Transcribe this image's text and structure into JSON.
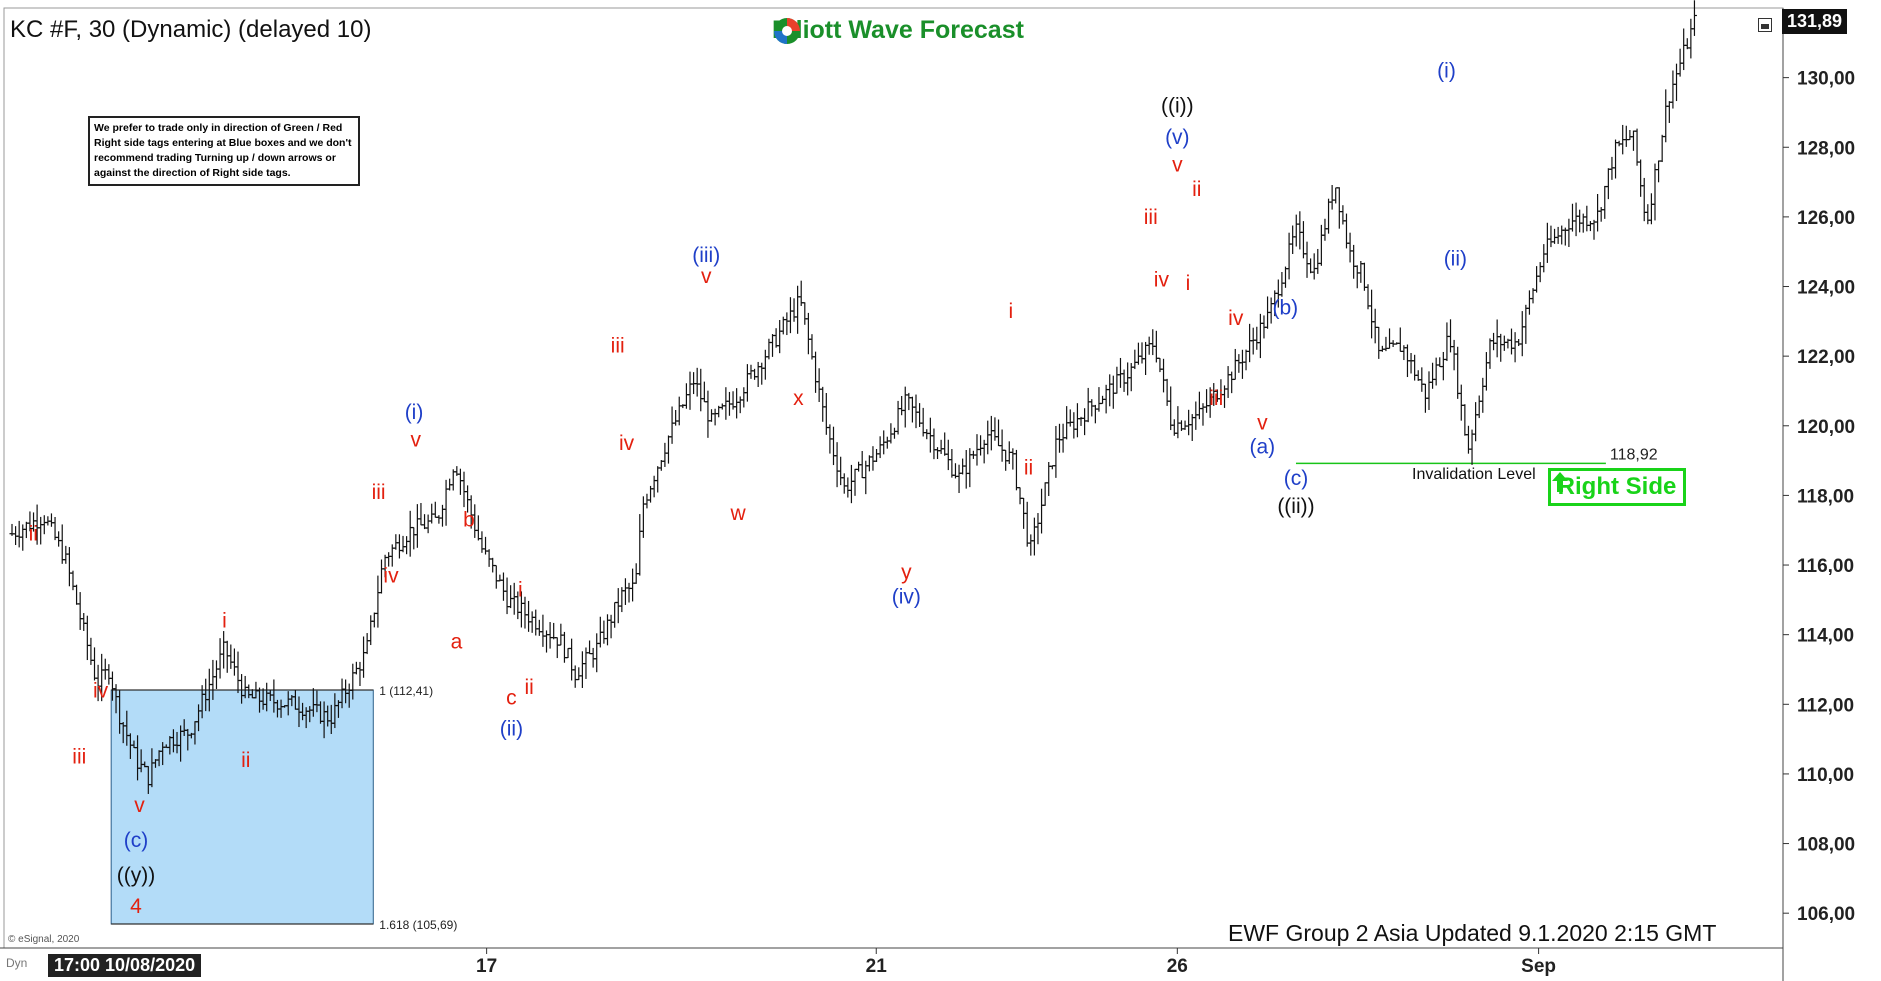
{
  "header": {
    "title": "KC #F, 30 (Dynamic) (delayed 10)",
    "logo_text": "Elliott Wave Forecast",
    "last_price": "131,89"
  },
  "note": {
    "text": "We prefer to trade only in direction of Green / Red Right side tags entering at Blue boxes and we don't recommend trading Turning up / down arrows or against the direction of Right side tags."
  },
  "footer": {
    "updated": "EWF Group 2 Asia Updated 9.1.2020 2:15 GMT",
    "esignal": "© eSignal, 2020",
    "dyn": "Dyn",
    "date_flag": "17:00 10/08/2020"
  },
  "box": {
    "label_top": "1 (112,41)",
    "label_bottom": "1.618 (105,69)",
    "top_value": 112.41,
    "bottom_value": 105.69,
    "color": "#b3dcf8"
  },
  "invalidation": {
    "label": "Invalidation Level",
    "value_text": "118,92",
    "value": 118.92
  },
  "right_side": {
    "label": "Right Side",
    "color": "#19d319"
  },
  "chart_data": {
    "type": "ohlc-bar",
    "y_axis": {
      "ticks": [
        "130,00",
        "128,00",
        "126,00",
        "124,00",
        "122,00",
        "120,00",
        "118,00",
        "116,00",
        "114,00",
        "112,00",
        "110,00",
        "108,00",
        "106,00"
      ],
      "tick_values": [
        130,
        128,
        126,
        124,
        122,
        120,
        118,
        116,
        114,
        112,
        110,
        108,
        106
      ],
      "range": [
        105,
        132
      ]
    },
    "x_axis": {
      "ticks": [
        "17",
        "21",
        "26",
        "Sep"
      ]
    },
    "price_path": [
      {
        "t": 0,
        "p": 116.9
      },
      {
        "t": 0.018,
        "p": 117.4
      },
      {
        "t": 0.03,
        "p": 116.2
      },
      {
        "t": 0.04,
        "p": 114.2
      },
      {
        "t": 0.048,
        "p": 112.6
      },
      {
        "t": 0.055,
        "p": 113.0
      },
      {
        "t": 0.06,
        "p": 111.8
      },
      {
        "t": 0.07,
        "p": 110.4
      },
      {
        "t": 0.077,
        "p": 109.9
      },
      {
        "t": 0.085,
        "p": 110.9
      },
      {
        "t": 0.1,
        "p": 111.2
      },
      {
        "t": 0.12,
        "p": 113.6
      },
      {
        "t": 0.132,
        "p": 112.2
      },
      {
        "t": 0.16,
        "p": 112.0
      },
      {
        "t": 0.18,
        "p": 111.6
      },
      {
        "t": 0.2,
        "p": 113.5
      },
      {
        "t": 0.21,
        "p": 116.2
      },
      {
        "t": 0.225,
        "p": 117.0
      },
      {
        "t": 0.24,
        "p": 117.3
      },
      {
        "t": 0.25,
        "p": 119.0
      },
      {
        "t": 0.265,
        "p": 116.5
      },
      {
        "t": 0.28,
        "p": 115.0
      },
      {
        "t": 0.295,
        "p": 114.4
      },
      {
        "t": 0.31,
        "p": 113.8
      },
      {
        "t": 0.318,
        "p": 112.9
      },
      {
        "t": 0.33,
        "p": 113.6
      },
      {
        "t": 0.345,
        "p": 115.2
      },
      {
        "t": 0.352,
        "p": 115.4
      },
      {
        "t": 0.356,
        "p": 117.7
      },
      {
        "t": 0.37,
        "p": 119.6
      },
      {
        "t": 0.385,
        "p": 121.3
      },
      {
        "t": 0.395,
        "p": 120.1
      },
      {
        "t": 0.41,
        "p": 120.9
      },
      {
        "t": 0.43,
        "p": 122.4
      },
      {
        "t": 0.445,
        "p": 123.6
      },
      {
        "t": 0.46,
        "p": 119.9
      },
      {
        "t": 0.47,
        "p": 118.2
      },
      {
        "t": 0.49,
        "p": 119.3
      },
      {
        "t": 0.505,
        "p": 120.7
      },
      {
        "t": 0.52,
        "p": 119.6
      },
      {
        "t": 0.535,
        "p": 118.5
      },
      {
        "t": 0.55,
        "p": 119.8
      },
      {
        "t": 0.565,
        "p": 119.0
      },
      {
        "t": 0.575,
        "p": 116.4
      },
      {
        "t": 0.59,
        "p": 119.6
      },
      {
        "t": 0.61,
        "p": 120.6
      },
      {
        "t": 0.63,
        "p": 121.5
      },
      {
        "t": 0.645,
        "p": 122.4
      },
      {
        "t": 0.655,
        "p": 120.0
      },
      {
        "t": 0.67,
        "p": 120.3
      },
      {
        "t": 0.69,
        "p": 121.6
      },
      {
        "t": 0.71,
        "p": 123.2
      },
      {
        "t": 0.725,
        "p": 125.6
      },
      {
        "t": 0.735,
        "p": 124.4
      },
      {
        "t": 0.747,
        "p": 127.0
      },
      {
        "t": 0.755,
        "p": 125.0
      },
      {
        "t": 0.763,
        "p": 124.3
      },
      {
        "t": 0.772,
        "p": 122.0
      },
      {
        "t": 0.785,
        "p": 122.3
      },
      {
        "t": 0.798,
        "p": 120.9
      },
      {
        "t": 0.812,
        "p": 122.6
      },
      {
        "t": 0.822,
        "p": 119.3
      },
      {
        "t": 0.835,
        "p": 122.4
      },
      {
        "t": 0.85,
        "p": 122.4
      },
      {
        "t": 0.865,
        "p": 125.0
      },
      {
        "t": 0.88,
        "p": 125.9
      },
      {
        "t": 0.895,
        "p": 126.0
      },
      {
        "t": 0.905,
        "p": 127.9
      },
      {
        "t": 0.915,
        "p": 128.4
      },
      {
        "t": 0.923,
        "p": 125.8
      },
      {
        "t": 0.935,
        "p": 129.4
      },
      {
        "t": 0.95,
        "p": 131.6
      }
    ]
  },
  "wave_labels": [
    {
      "text": "ii",
      "color": "red",
      "t": 0.012,
      "p": 116.7
    },
    {
      "text": "iv",
      "color": "red",
      "t": 0.05,
      "p": 112.2
    },
    {
      "text": "iii",
      "color": "red",
      "t": 0.038,
      "p": 110.3
    },
    {
      "text": "v",
      "color": "red",
      "t": 0.072,
      "p": 108.9
    },
    {
      "text": "(c)",
      "color": "blue",
      "t": 0.07,
      "p": 107.9
    },
    {
      "text": "((y))",
      "color": "black",
      "t": 0.07,
      "p": 106.9
    },
    {
      "text": "4",
      "color": "red",
      "t": 0.07,
      "p": 106.0
    },
    {
      "text": "i",
      "color": "red",
      "t": 0.12,
      "p": 114.2
    },
    {
      "text": "ii",
      "color": "red",
      "t": 0.132,
      "p": 110.2
    },
    {
      "text": "iii",
      "color": "red",
      "t": 0.207,
      "p": 117.9
    },
    {
      "text": "iv",
      "color": "red",
      "t": 0.214,
      "p": 115.5
    },
    {
      "text": "(i)",
      "color": "blue",
      "t": 0.227,
      "p": 120.2
    },
    {
      "text": "v",
      "color": "red",
      "t": 0.228,
      "p": 119.4
    },
    {
      "text": "b",
      "color": "red",
      "t": 0.258,
      "p": 117.1
    },
    {
      "text": "a",
      "color": "red",
      "t": 0.251,
      "p": 113.6
    },
    {
      "text": "c",
      "color": "red",
      "t": 0.282,
      "p": 112.0
    },
    {
      "text": "(ii)",
      "color": "blue",
      "t": 0.282,
      "p": 111.1
    },
    {
      "text": "i",
      "color": "red",
      "t": 0.287,
      "p": 115.1
    },
    {
      "text": "ii",
      "color": "red",
      "t": 0.292,
      "p": 112.3
    },
    {
      "text": "iii",
      "color": "red",
      "t": 0.342,
      "p": 122.1
    },
    {
      "text": "iv",
      "color": "red",
      "t": 0.347,
      "p": 119.3
    },
    {
      "text": "(iii)",
      "color": "blue",
      "t": 0.392,
      "p": 124.7
    },
    {
      "text": "v",
      "color": "red",
      "t": 0.392,
      "p": 124.1
    },
    {
      "text": "w",
      "color": "red",
      "t": 0.41,
      "p": 117.3
    },
    {
      "text": "x",
      "color": "red",
      "t": 0.444,
      "p": 120.6
    },
    {
      "text": "y",
      "color": "red",
      "t": 0.505,
      "p": 115.6
    },
    {
      "text": "(iv)",
      "color": "blue",
      "t": 0.505,
      "p": 114.9
    },
    {
      "text": "i",
      "color": "red",
      "t": 0.564,
      "p": 123.1
    },
    {
      "text": "ii",
      "color": "red",
      "t": 0.574,
      "p": 118.6
    },
    {
      "text": "iii",
      "color": "red",
      "t": 0.643,
      "p": 125.8
    },
    {
      "text": "iv",
      "color": "red",
      "t": 0.649,
      "p": 124.0
    },
    {
      "text": "((i))",
      "color": "black",
      "t": 0.658,
      "p": 129.0
    },
    {
      "text": "(v)",
      "color": "blue",
      "t": 0.658,
      "p": 128.1
    },
    {
      "text": "v",
      "color": "red",
      "t": 0.658,
      "p": 127.3
    },
    {
      "text": "ii",
      "color": "red",
      "t": 0.669,
      "p": 126.6
    },
    {
      "text": "i",
      "color": "red",
      "t": 0.664,
      "p": 123.9
    },
    {
      "text": "iv",
      "color": "red",
      "t": 0.691,
      "p": 122.9
    },
    {
      "text": "iii",
      "color": "red",
      "t": 0.68,
      "p": 120.6
    },
    {
      "text": "v",
      "color": "red",
      "t": 0.706,
      "p": 119.9
    },
    {
      "text": "(a)",
      "color": "blue",
      "t": 0.706,
      "p": 119.2
    },
    {
      "text": "(b)",
      "color": "blue",
      "t": 0.719,
      "p": 123.2
    },
    {
      "text": "(c)",
      "color": "blue",
      "t": 0.725,
      "p": 118.3
    },
    {
      "text": "((ii))",
      "color": "black",
      "t": 0.725,
      "p": 117.5
    },
    {
      "text": "(i)",
      "color": "blue",
      "t": 0.81,
      "p": 130.0
    },
    {
      "text": "(ii)",
      "color": "blue",
      "t": 0.815,
      "p": 124.6
    }
  ]
}
